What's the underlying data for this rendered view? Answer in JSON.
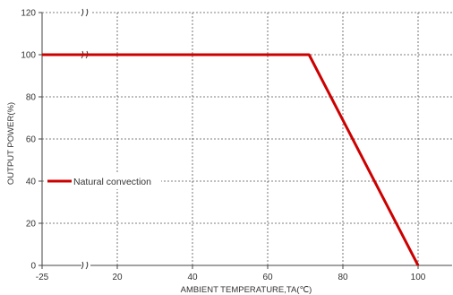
{
  "chart_data": {
    "type": "line",
    "ylabel": "OUTPUT POWER(%)",
    "xlabel": "AMBIENT TEMPERATURE,TA(℃)",
    "x_ticks": [
      "-25",
      "20",
      "40",
      "60",
      "80",
      "100"
    ],
    "y_ticks": [
      "0",
      "20",
      "40",
      "60",
      "80",
      "100",
      "120"
    ],
    "xlim": [
      -25,
      110
    ],
    "ylim": [
      0,
      120
    ],
    "x_axis_break": true,
    "grid": true,
    "legend_position": "left",
    "series": [
      {
        "name": "Natural convection",
        "color": "#cc0000",
        "x": [
          -25,
          71,
          100
        ],
        "y": [
          100,
          100,
          0
        ]
      }
    ]
  }
}
